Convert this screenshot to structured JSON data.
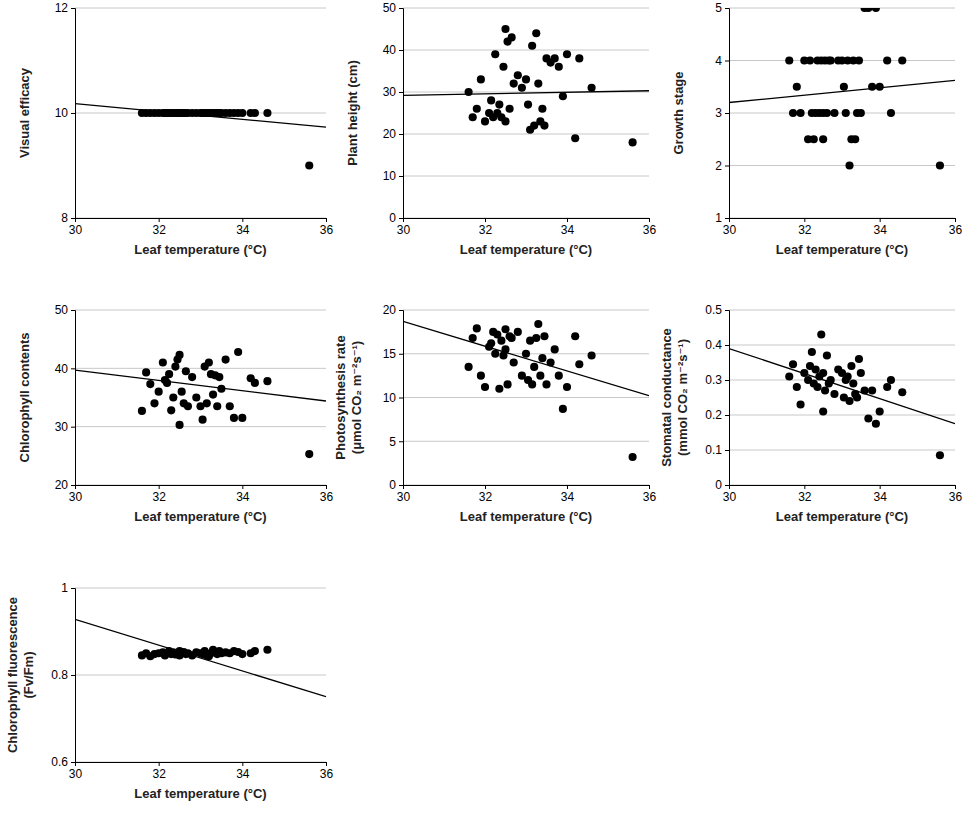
{
  "chart_data": [
    {
      "type": "scatter",
      "xlabel": "Leaf temperature (°C)",
      "ylabel": "Visual efficacy",
      "xlim": [
        30,
        36
      ],
      "xticks": [
        30,
        32,
        34,
        36
      ],
      "ylim": [
        8,
        12
      ],
      "yticks": [
        8,
        10,
        12
      ],
      "grid": true,
      "series": [
        {
          "type": "scatter",
          "marker": "circle",
          "color": "#000000",
          "x": [
            31.6,
            31.7,
            31.8,
            31.9,
            32.0,
            32.1,
            32.15,
            32.2,
            32.25,
            32.3,
            32.35,
            32.4,
            32.45,
            32.5,
            32.5,
            32.55,
            32.6,
            32.65,
            32.7,
            32.8,
            32.9,
            33.0,
            33.05,
            33.1,
            33.15,
            33.2,
            33.25,
            33.3,
            33.35,
            33.4,
            33.45,
            33.5,
            33.6,
            33.7,
            33.8,
            33.9,
            34.0,
            34.2,
            34.3,
            34.6,
            35.6
          ],
          "values": [
            10,
            10,
            10,
            10,
            10,
            10,
            10,
            10,
            10,
            10,
            10,
            10,
            10,
            10,
            10,
            10,
            10,
            10,
            10,
            10,
            10,
            10,
            10,
            10,
            10,
            10,
            10,
            10,
            10,
            10,
            10,
            10,
            10,
            10,
            10,
            10,
            10,
            10,
            10,
            10,
            9
          ]
        },
        {
          "type": "line",
          "line_style": "solid",
          "color": "#000000",
          "x": [
            30,
            36
          ],
          "values": [
            10.18,
            9.73
          ]
        }
      ]
    },
    {
      "type": "scatter",
      "xlabel": "Leaf temperature (°C)",
      "ylabel": "Plant height (cm)",
      "xlim": [
        30,
        36
      ],
      "xticks": [
        30,
        32,
        34,
        36
      ],
      "ylim": [
        0,
        50
      ],
      "yticks": [
        0,
        10,
        20,
        30,
        40,
        50
      ],
      "grid": true,
      "series": [
        {
          "type": "scatter",
          "marker": "circle",
          "color": "#000000",
          "x": [
            31.6,
            31.7,
            31.8,
            31.9,
            32.0,
            32.1,
            32.15,
            32.2,
            32.25,
            32.3,
            32.35,
            32.4,
            32.45,
            32.5,
            32.5,
            32.55,
            32.6,
            32.65,
            32.7,
            32.8,
            32.9,
            33.0,
            33.05,
            33.1,
            33.15,
            33.2,
            33.25,
            33.3,
            33.35,
            33.4,
            33.45,
            33.5,
            33.6,
            33.7,
            33.8,
            33.9,
            34.0,
            34.2,
            34.3,
            34.6,
            35.6
          ],
          "values": [
            30,
            24,
            26,
            33,
            23,
            25,
            28,
            24,
            39,
            25,
            27,
            24,
            36,
            45,
            23,
            42,
            26,
            43,
            32,
            34,
            31,
            33,
            27,
            21,
            41,
            22,
            44,
            32,
            23,
            26,
            22,
            38,
            37,
            38,
            36,
            29,
            39,
            19,
            38,
            31,
            18
          ]
        },
        {
          "type": "line",
          "line_style": "solid",
          "color": "#000000",
          "x": [
            30,
            36
          ],
          "values": [
            29.2,
            30.3
          ]
        }
      ]
    },
    {
      "type": "scatter",
      "xlabel": "Leaf temperature (°C)",
      "ylabel": "Growth stage",
      "xlim": [
        30,
        36
      ],
      "xticks": [
        30,
        32,
        34,
        36
      ],
      "ylim": [
        1,
        5
      ],
      "yticks": [
        1,
        2,
        3,
        4,
        5
      ],
      "grid": true,
      "series": [
        {
          "type": "scatter",
          "marker": "circle",
          "color": "#000000",
          "x": [
            31.6,
            31.7,
            31.8,
            31.9,
            32.0,
            32.1,
            32.15,
            32.2,
            32.25,
            32.3,
            32.35,
            32.4,
            32.45,
            32.5,
            32.5,
            32.55,
            32.6,
            32.65,
            32.7,
            32.8,
            32.9,
            33.0,
            33.05,
            33.1,
            33.15,
            33.2,
            33.25,
            33.3,
            33.35,
            33.4,
            33.45,
            33.5,
            33.6,
            33.7,
            33.8,
            33.9,
            34.0,
            34.2,
            34.3,
            34.6,
            35.6
          ],
          "values": [
            4,
            3,
            3.5,
            3,
            4,
            2.5,
            4,
            3,
            2.5,
            3,
            4,
            3,
            4,
            3,
            2.5,
            4,
            3,
            4,
            4,
            3,
            4,
            4,
            3.5,
            3,
            4,
            2,
            2.5,
            4,
            2.5,
            3,
            4,
            3,
            5,
            5,
            3.5,
            5,
            3.5,
            4,
            3,
            4,
            2
          ]
        },
        {
          "type": "line",
          "line_style": "solid",
          "color": "#000000",
          "x": [
            30,
            36
          ],
          "values": [
            3.2,
            3.62
          ]
        }
      ]
    },
    {
      "type": "scatter",
      "xlabel": "Leaf temperature (°C)",
      "ylabel": "Chlorophyll contents",
      "xlim": [
        30,
        36
      ],
      "xticks": [
        30,
        32,
        34,
        36
      ],
      "ylim": [
        20,
        50
      ],
      "yticks": [
        20,
        30,
        40,
        50
      ],
      "grid": true,
      "series": [
        {
          "type": "scatter",
          "marker": "circle",
          "color": "#000000",
          "x": [
            31.6,
            31.7,
            31.8,
            31.9,
            32.0,
            32.1,
            32.15,
            32.2,
            32.25,
            32.3,
            32.35,
            32.4,
            32.45,
            32.5,
            32.5,
            32.55,
            32.6,
            32.65,
            32.7,
            32.8,
            32.9,
            33.0,
            33.05,
            33.1,
            33.15,
            33.2,
            33.25,
            33.3,
            33.35,
            33.4,
            33.45,
            33.5,
            33.6,
            33.7,
            33.8,
            33.9,
            34.0,
            34.2,
            34.3,
            34.6,
            35.6
          ],
          "values": [
            32.7,
            39.3,
            37.3,
            34,
            36,
            41,
            38,
            37.5,
            39,
            32.8,
            35,
            40.3,
            41.5,
            42.3,
            30.3,
            36,
            34,
            39.5,
            33.5,
            38.5,
            35,
            33.5,
            31.2,
            40.3,
            34,
            41,
            39,
            35.5,
            38.8,
            33.5,
            38.5,
            36.5,
            41.5,
            33.5,
            31.5,
            42.8,
            31.5,
            38.3,
            37.5,
            37.8,
            25.3
          ]
        },
        {
          "type": "line",
          "line_style": "solid",
          "color": "#000000",
          "x": [
            30,
            36
          ],
          "values": [
            39.7,
            34.4
          ]
        }
      ]
    },
    {
      "type": "scatter",
      "xlabel": "Leaf temperature (°C)",
      "ylabel": [
        "Photosynthesis rate",
        "(μmol CO₂ m⁻²s⁻¹)"
      ],
      "xlim": [
        30,
        36
      ],
      "xticks": [
        30,
        32,
        34,
        36
      ],
      "ylim": [
        0,
        20
      ],
      "yticks": [
        0,
        5,
        10,
        15,
        20
      ],
      "grid": true,
      "series": [
        {
          "type": "scatter",
          "marker": "circle",
          "color": "#000000",
          "x": [
            31.6,
            31.7,
            31.8,
            31.9,
            32.0,
            32.1,
            32.15,
            32.2,
            32.25,
            32.3,
            32.35,
            32.4,
            32.45,
            32.5,
            32.5,
            32.55,
            32.6,
            32.65,
            32.7,
            32.8,
            32.9,
            33.0,
            33.05,
            33.1,
            33.15,
            33.2,
            33.25,
            33.3,
            33.35,
            33.4,
            33.45,
            33.5,
            33.6,
            33.7,
            33.8,
            33.9,
            34.0,
            34.2,
            34.3,
            34.6,
            35.6
          ],
          "values": [
            13.5,
            16.8,
            17.9,
            12.5,
            11.2,
            15.8,
            16.2,
            17.5,
            15,
            17.2,
            11,
            16.5,
            14.8,
            17.8,
            15.5,
            11.5,
            17,
            16.8,
            14,
            17.5,
            12.5,
            15,
            12,
            16.5,
            11.5,
            13.5,
            16.8,
            18.4,
            12.5,
            14.5,
            17,
            11.5,
            14,
            15.5,
            12.5,
            8.7,
            11.2,
            17,
            13.8,
            14.8,
            3.2
          ]
        },
        {
          "type": "line",
          "line_style": "solid",
          "color": "#000000",
          "x": [
            30,
            36
          ],
          "values": [
            18.7,
            10.2
          ]
        }
      ]
    },
    {
      "type": "scatter",
      "xlabel": "Leaf temperature (°C)",
      "ylabel": [
        "Stomatal conductance",
        "(mmol CO₂ m⁻²s⁻¹)"
      ],
      "xlim": [
        30,
        36
      ],
      "xticks": [
        30,
        32,
        34,
        36
      ],
      "ylim": [
        0,
        0.5
      ],
      "yticks": [
        0,
        0.1,
        0.2,
        0.3,
        0.4,
        0.5
      ],
      "grid": true,
      "series": [
        {
          "type": "scatter",
          "marker": "circle",
          "color": "#000000",
          "x": [
            31.6,
            31.7,
            31.8,
            31.9,
            32.0,
            32.1,
            32.15,
            32.2,
            32.25,
            32.3,
            32.35,
            32.4,
            32.45,
            32.5,
            32.5,
            32.55,
            32.6,
            32.65,
            32.7,
            32.8,
            32.9,
            33.0,
            33.05,
            33.1,
            33.15,
            33.2,
            33.25,
            33.3,
            33.35,
            33.4,
            33.45,
            33.5,
            33.6,
            33.7,
            33.8,
            33.9,
            34.0,
            34.2,
            34.3,
            34.6,
            35.6
          ],
          "values": [
            0.31,
            0.345,
            0.28,
            0.23,
            0.32,
            0.3,
            0.34,
            0.38,
            0.29,
            0.33,
            0.28,
            0.31,
            0.43,
            0.21,
            0.32,
            0.27,
            0.37,
            0.29,
            0.3,
            0.26,
            0.33,
            0.32,
            0.25,
            0.3,
            0.31,
            0.24,
            0.34,
            0.29,
            0.26,
            0.25,
            0.36,
            0.32,
            0.27,
            0.19,
            0.27,
            0.175,
            0.21,
            0.28,
            0.3,
            0.265,
            0.085
          ]
        },
        {
          "type": "line",
          "line_style": "solid",
          "color": "#000000",
          "x": [
            30,
            36
          ],
          "values": [
            0.39,
            0.175
          ]
        }
      ]
    },
    {
      "type": "scatter",
      "xlabel": "Leaf temperature (°C)",
      "ylabel": [
        "Chlorophyll fluorescence",
        "(Fv/Fm)"
      ],
      "xlim": [
        30,
        36
      ],
      "xticks": [
        30,
        32,
        34,
        36
      ],
      "ylim": [
        0.6,
        1
      ],
      "yticks": [
        0.6,
        0.8,
        1
      ],
      "grid": true,
      "series": [
        {
          "type": "scatter",
          "marker": "circle",
          "color": "#000000",
          "x": [
            31.6,
            31.7,
            31.8,
            31.9,
            32.0,
            32.1,
            32.15,
            32.2,
            32.25,
            32.3,
            32.35,
            32.4,
            32.45,
            32.5,
            32.5,
            32.55,
            32.6,
            32.65,
            32.7,
            32.8,
            32.9,
            33.0,
            33.05,
            33.1,
            33.15,
            33.2,
            33.25,
            33.3,
            33.35,
            33.4,
            33.45,
            33.5,
            33.6,
            33.7,
            33.8,
            33.9,
            34.0,
            34.2,
            34.3,
            34.6
          ],
          "values": [
            0.845,
            0.85,
            0.843,
            0.848,
            0.85,
            0.852,
            0.845,
            0.85,
            0.855,
            0.848,
            0.852,
            0.847,
            0.85,
            0.855,
            0.845,
            0.85,
            0.853,
            0.848,
            0.85,
            0.845,
            0.852,
            0.85,
            0.848,
            0.855,
            0.845,
            0.843,
            0.85,
            0.858,
            0.853,
            0.848,
            0.855,
            0.85,
            0.852,
            0.85,
            0.855,
            0.853,
            0.848,
            0.85,
            0.855,
            0.858
          ]
        },
        {
          "type": "line",
          "line_style": "solid",
          "color": "#000000",
          "x": [
            30,
            36
          ],
          "values": [
            0.928,
            0.75
          ]
        }
      ]
    }
  ]
}
